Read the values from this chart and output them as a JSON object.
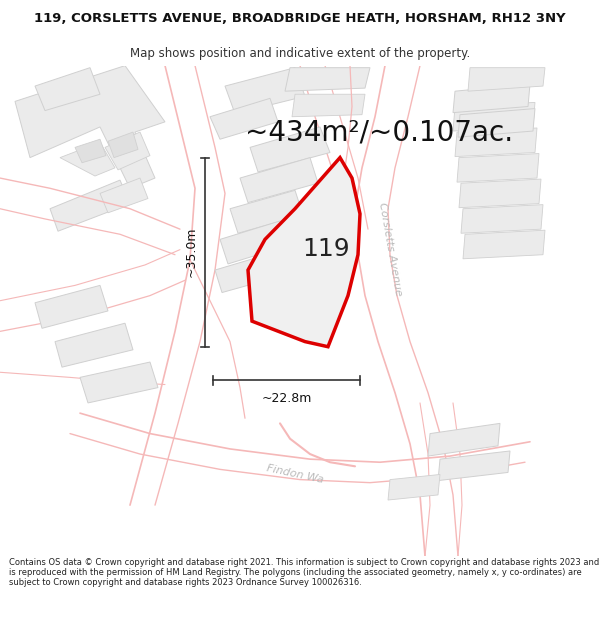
{
  "title_line1": "119, CORSLETTS AVENUE, BROADBRIDGE HEATH, HORSHAM, RH12 3NY",
  "title_line2": "Map shows position and indicative extent of the property.",
  "area_text": "~434m²/~0.107ac.",
  "label_119": "119",
  "dim_vertical": "~35.0m",
  "dim_horizontal": "~22.8m",
  "road_corsletts": "Corsletts Avenue",
  "road_findon": "Findon Wa",
  "footer_text": "Contains OS data © Crown copyright and database right 2021. This information is subject to Crown copyright and database rights 2023 and is reproduced with the permission of HM Land Registry. The polygons (including the associated geometry, namely x, y co-ordinates) are subject to Crown copyright and database rights 2023 Ordnance Survey 100026316.",
  "bg_color": "#ffffff",
  "map_bg": "#ffffff",
  "plot_fill": "#e8e8e8",
  "plot_edge": "#dd0000",
  "road_color": "#f5b8b8",
  "road_color2": "#e8a0a0",
  "building_fill": "#ebebeb",
  "building_edge": "#d0d0d0",
  "dim_line_color": "#333333",
  "title_fontsize": 9.5,
  "subtitle_fontsize": 8.5,
  "area_fontsize": 20,
  "label_fontsize": 18,
  "dim_fontsize": 9,
  "road_fontsize": 8,
  "footer_fontsize": 6.0
}
